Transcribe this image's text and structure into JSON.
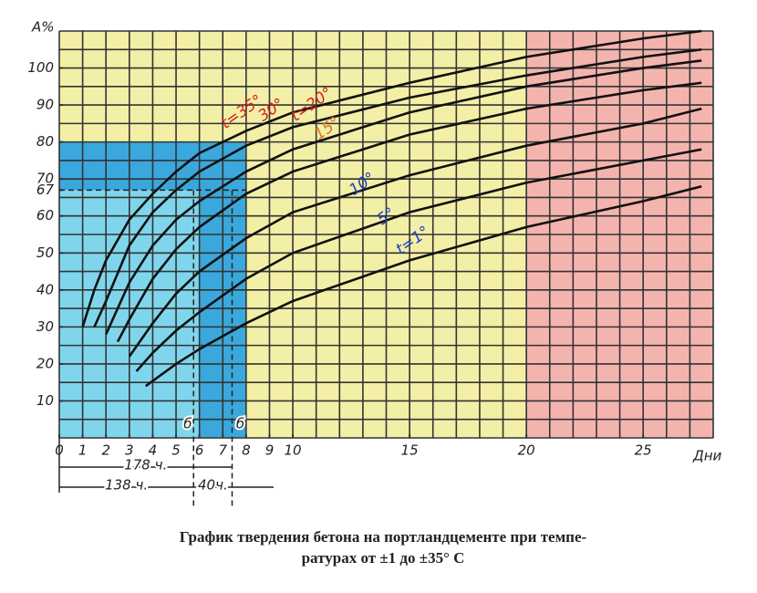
{
  "chart_data": {
    "type": "line",
    "y_label": "А%",
    "x_label": "Дни",
    "caption": [
      "График твердения бетона на портландцементе при темпе-",
      "ратурах от ±1 до ±35° С"
    ],
    "xlim": [
      0,
      28
    ],
    "ylim": [
      0,
      110
    ],
    "xticks": [
      0,
      1,
      2,
      3,
      4,
      5,
      6,
      7,
      8,
      9,
      10,
      15,
      20,
      25
    ],
    "yticks": [
      10,
      20,
      30,
      40,
      50,
      60,
      67,
      70,
      80,
      90,
      100
    ],
    "grid": true,
    "regions": [
      {
        "x": [
          0,
          8
        ],
        "y": [
          0,
          80
        ],
        "color": "#7fd6ec"
      },
      {
        "x": [
          0,
          8
        ],
        "y": [
          67,
          80
        ],
        "color": "#3aa8dc"
      },
      {
        "x": [
          6,
          8
        ],
        "y": [
          0,
          80
        ],
        "color": "#3aa8dc"
      },
      {
        "x": [
          20,
          28
        ],
        "y": [
          0,
          110
        ],
        "color": "#f4b4ae"
      }
    ],
    "annotations": [
      "178 ч.",
      "138 ч.",
      "40ч.",
      "б",
      "б"
    ],
    "series": [
      {
        "name": "t=35°",
        "color": "#111111",
        "label_color": "#d02020",
        "x": [
          1,
          1.5,
          2,
          3,
          4,
          5,
          6,
          7,
          8,
          10,
          15,
          20,
          25,
          27.5
        ],
        "values": [
          30,
          40,
          48,
          59,
          66,
          72,
          77,
          80,
          83,
          88,
          96,
          103,
          108,
          110
        ]
      },
      {
        "name": "30°",
        "color": "#111111",
        "label_color": "#d02020",
        "x": [
          1.5,
          2,
          3,
          4,
          5,
          6,
          8,
          10,
          15,
          20,
          25,
          27.5
        ],
        "values": [
          30,
          37,
          52,
          61,
          67,
          72,
          79,
          84,
          92,
          98,
          103,
          105
        ]
      },
      {
        "name": "t=20°",
        "color": "#111111",
        "label_color": "#d02020",
        "x": [
          2,
          3,
          4,
          5,
          6,
          8,
          10,
          15,
          20,
          25,
          27.5
        ],
        "values": [
          28,
          42,
          52,
          59,
          64,
          72,
          78,
          88,
          95,
          100,
          102
        ]
      },
      {
        "name": "15°",
        "color": "#111111",
        "label_color": "#e07020",
        "x": [
          2.5,
          3,
          4,
          5,
          6,
          8,
          10,
          15,
          20,
          25,
          27.5
        ],
        "values": [
          26,
          32,
          43,
          51,
          57,
          66,
          72,
          82,
          89,
          94,
          96
        ]
      },
      {
        "name": "10°",
        "color": "#111111",
        "label_color": "#2040c0",
        "x": [
          3,
          4,
          5,
          6,
          8,
          10,
          15,
          20,
          25,
          27.5
        ],
        "values": [
          22,
          31,
          39,
          45,
          54,
          61,
          71,
          79,
          85,
          89
        ]
      },
      {
        "name": "5°",
        "color": "#111111",
        "label_color": "#2040c0",
        "x": [
          3.3,
          4,
          5,
          6,
          8,
          10,
          15,
          20,
          25,
          27.5
        ],
        "values": [
          18,
          23,
          29,
          34,
          43,
          50,
          61,
          69,
          75,
          78
        ]
      },
      {
        "name": "t=1°",
        "color": "#111111",
        "label_color": "#2040c0",
        "x": [
          3.7,
          5,
          6,
          8,
          10,
          15,
          20,
          25,
          27.5
        ],
        "values": [
          14,
          20,
          24,
          31,
          37,
          48,
          57,
          64,
          68
        ]
      }
    ]
  }
}
